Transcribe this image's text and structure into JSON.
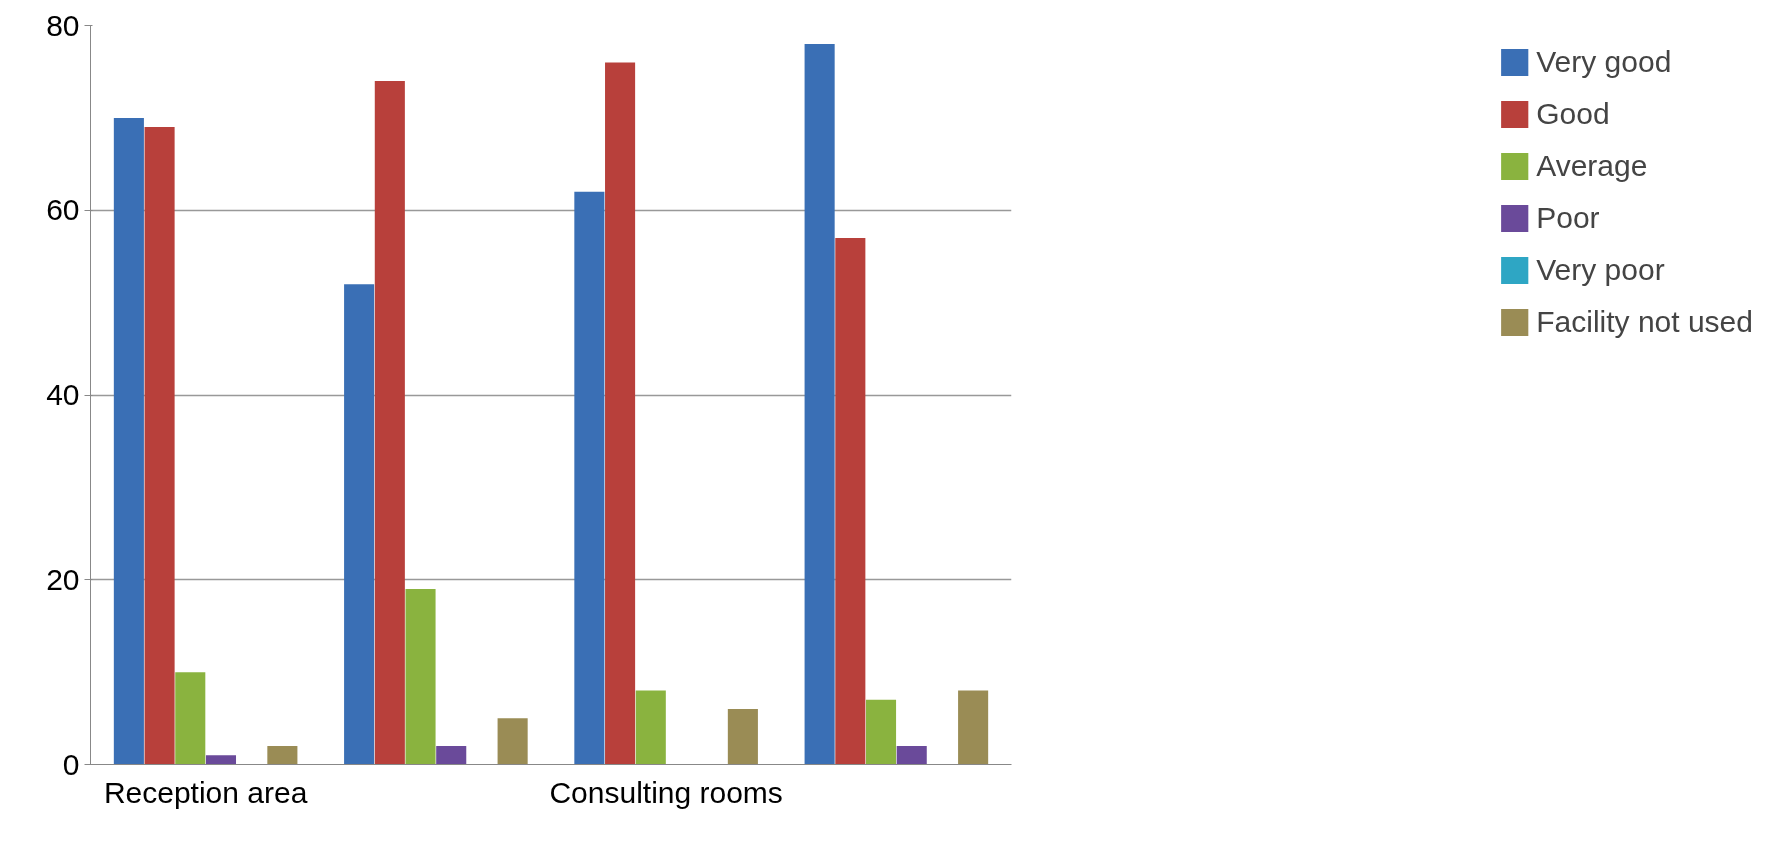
{
  "chart_data": {
    "type": "bar",
    "categories": [
      "Reception area",
      null,
      "Consulting rooms",
      null
    ],
    "series": [
      {
        "name": "Very good",
        "color": "#3a6fb5",
        "values": [
          70,
          52,
          62,
          78
        ]
      },
      {
        "name": "Good",
        "color": "#b8403b",
        "values": [
          69,
          74,
          76,
          57
        ]
      },
      {
        "name": "Average",
        "color": "#8ab33f",
        "values": [
          10,
          19,
          8,
          7
        ]
      },
      {
        "name": "Poor",
        "color": "#6a4a9a",
        "values": [
          1,
          2,
          0,
          2
        ]
      },
      {
        "name": "Very poor",
        "color": "#2ea6c4",
        "values": [
          0,
          0,
          0,
          0
        ]
      },
      {
        "name": "Facility not used",
        "color": "#9a8c55",
        "values": [
          2,
          5,
          6,
          8
        ]
      }
    ],
    "ylim": [
      0,
      80
    ],
    "yticks": [
      0,
      20,
      40,
      60,
      80
    ],
    "grid": "y",
    "legend": "right"
  }
}
